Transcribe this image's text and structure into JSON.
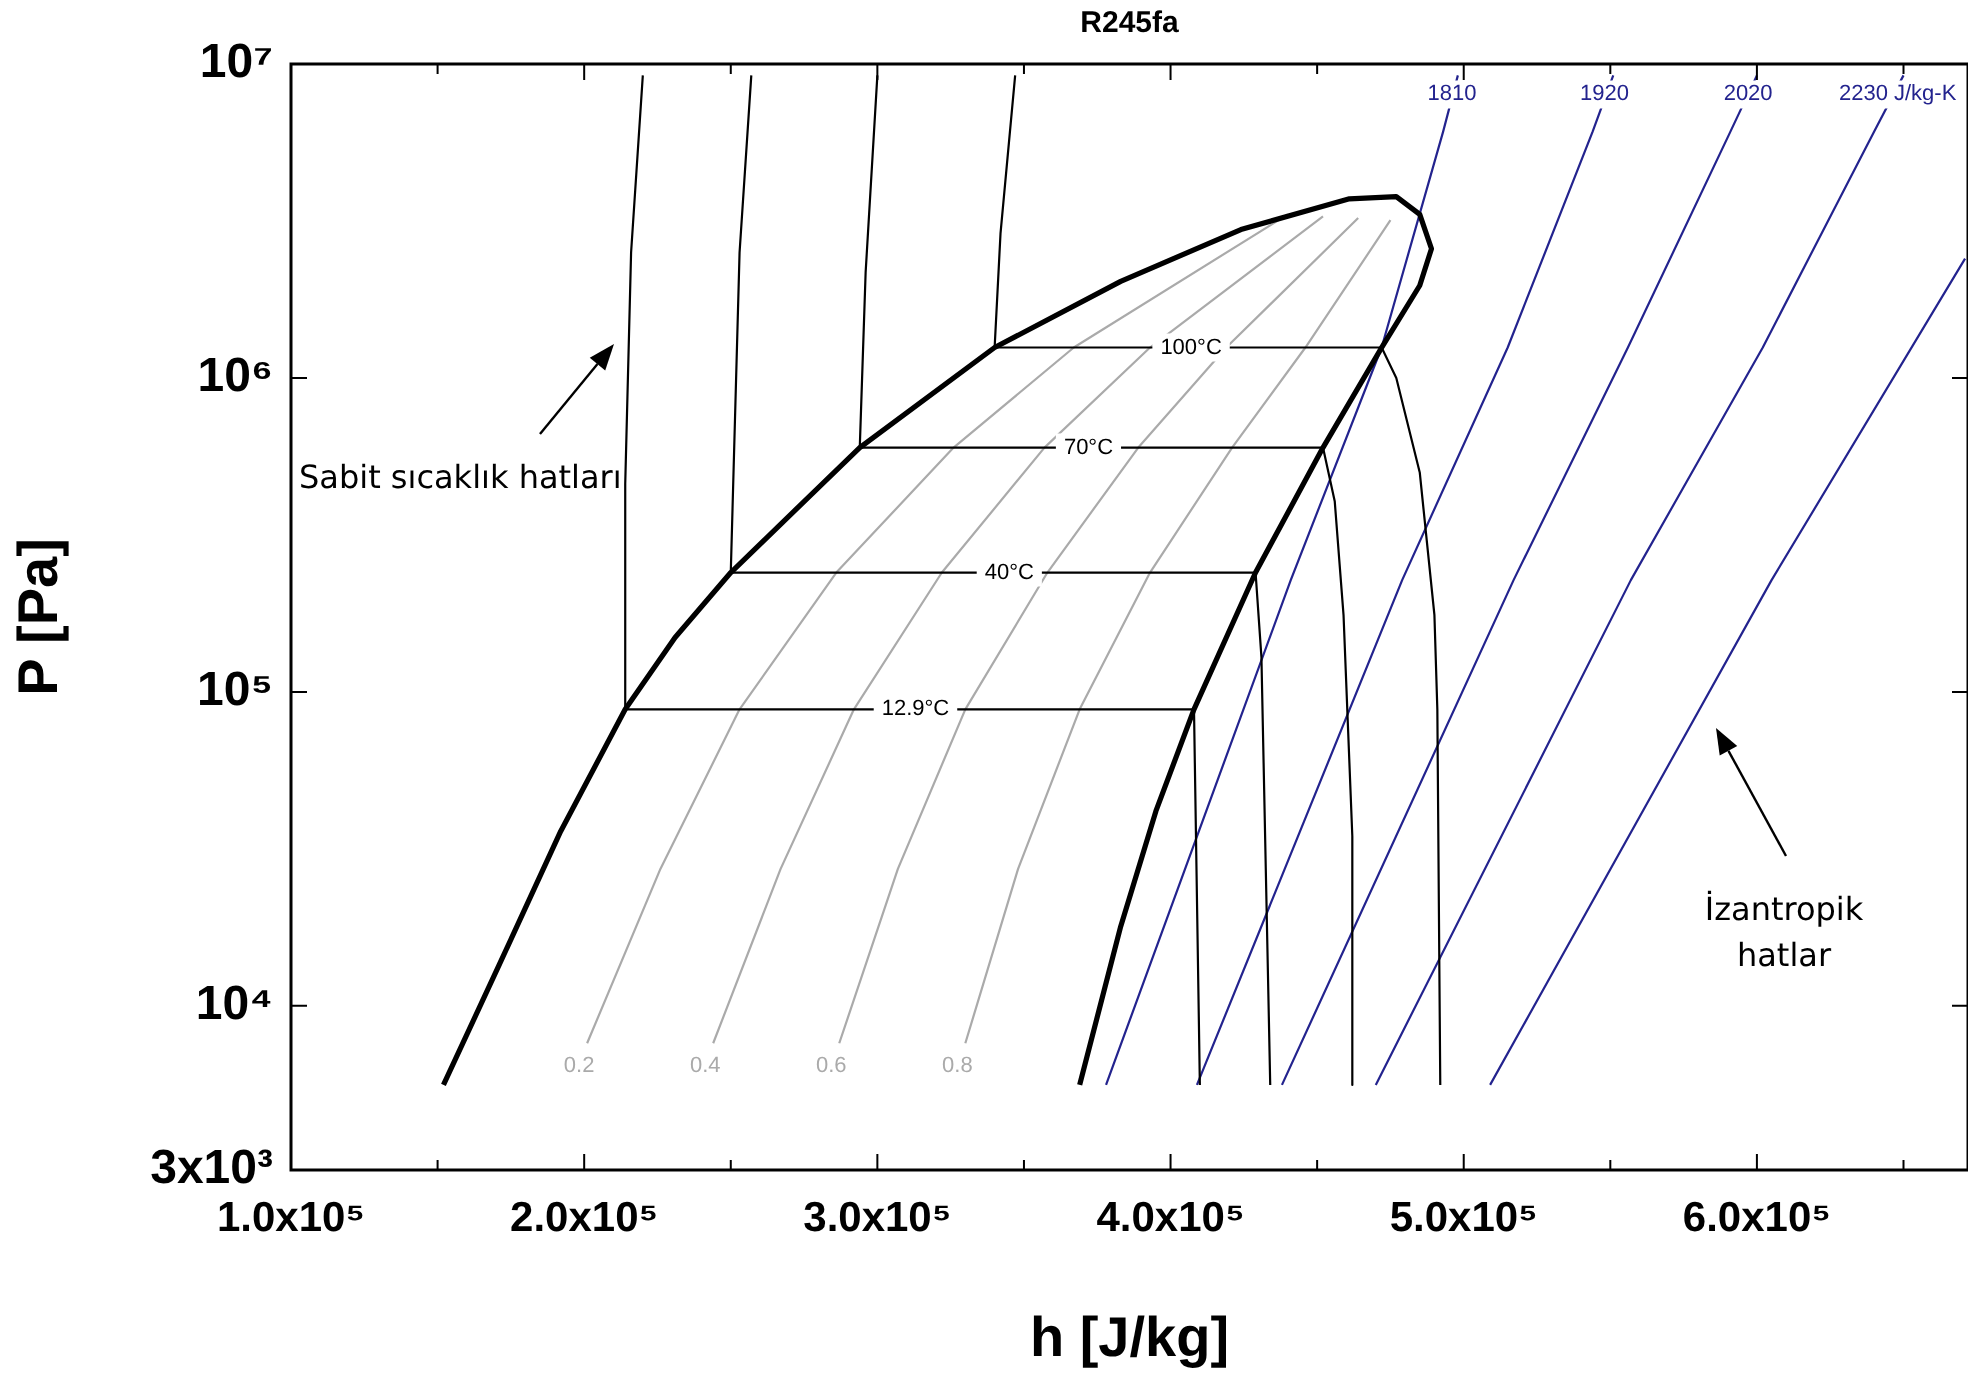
{
  "chart_data": {
    "type": "line",
    "title": "R245fa",
    "xlabel": "h [J/kg]",
    "ylabel": "P [Pa]",
    "xlim": [
      100000,
      672000
    ],
    "ylim": [
      3000,
      10000000
    ],
    "log": "y",
    "grid": false,
    "legend": false,
    "marker": "none",
    "xticks": [
      {
        "value": 100000,
        "label": "1.0x10⁵"
      },
      {
        "value": 150000,
        "label": null
      },
      {
        "value": 200000,
        "label": "2.0x10⁵"
      },
      {
        "value": 250000,
        "label": null
      },
      {
        "value": 300000,
        "label": "3.0x10⁵"
      },
      {
        "value": 350000,
        "label": null
      },
      {
        "value": 400000,
        "label": "4.0x10⁵"
      },
      {
        "value": 450000,
        "label": null
      },
      {
        "value": 500000,
        "label": "5.0x10⁵"
      },
      {
        "value": 550000,
        "label": null
      },
      {
        "value": 600000,
        "label": "6.0x10⁵"
      },
      {
        "value": 650000,
        "label": null
      }
    ],
    "yticks": [
      {
        "value": 3000,
        "label": "3x10³"
      },
      {
        "value": 10000,
        "label": "10⁴"
      },
      {
        "value": 100000,
        "label": "10⁵"
      },
      {
        "value": 1000000,
        "label": "10⁶"
      },
      {
        "value": 10000000,
        "label": "10⁷"
      }
    ],
    "series": [
      {
        "color": "#000000",
        "x": [
          152000,
          171000,
          192000,
          214000,
          231000,
          250000,
          294000,
          340000,
          383000,
          424000,
          461000,
          477000,
          485000,
          489000,
          485000,
          472000,
          452000,
          429000,
          408000,
          395000,
          383000,
          369000
        ],
        "values": [
          5600,
          13500,
          36000,
          88000,
          149000,
          240000,
          600000,
          1250000,
          2030000,
          2970000,
          3720000,
          3780000,
          3320000,
          2580000,
          1970000,
          1250000,
          600000,
          240000,
          88000,
          41700,
          17900,
          5600
        ]
      },
      {
        "color": "#000000",
        "x": [
          220000,
          216000,
          214000,
          214000,
          408000,
          410000
        ],
        "values": [
          9200000,
          2510000,
          460000,
          88000,
          88000,
          5600
        ]
      },
      {
        "color": "#000000",
        "x": [
          257000,
          253000,
          250000,
          429000,
          431000,
          434000
        ],
        "values": [
          9200000,
          2510000,
          240000,
          240000,
          129000,
          5600
        ]
      },
      {
        "color": "#000000",
        "x": [
          300000,
          296000,
          294000,
          452000,
          456000,
          459000,
          462000,
          462000
        ],
        "values": [
          9200000,
          2170000,
          600000,
          600000,
          405000,
          176000,
          34700,
          5600
        ]
      },
      {
        "color": "#000000",
        "x": [
          347000,
          342000,
          340000,
          472000,
          477000,
          485000,
          490000,
          491000,
          492000
        ],
        "values": [
          9200000,
          2880000,
          1250000,
          1250000,
          1000000,
          500000,
          176000,
          88000,
          5600
        ]
      },
      {
        "name": "0.2",
        "color": "#aaaaaa",
        "x": [
          201000,
          226000,
          253000,
          286000,
          326000,
          367000,
          440000
        ],
        "values": [
          7600,
          27300,
          88000,
          240000,
          600000,
          1250000,
          3320000
        ]
      },
      {
        "name": "0.4",
        "color": "#aaaaaa",
        "x": [
          244000,
          267000,
          292000,
          322000,
          357000,
          393000,
          452000
        ],
        "values": [
          7600,
          27300,
          88000,
          240000,
          600000,
          1250000,
          3270000
        ]
      },
      {
        "name": "0.6",
        "color": "#aaaaaa",
        "x": [
          287000,
          307000,
          330000,
          358000,
          389000,
          419000,
          464000
        ],
        "values": [
          7600,
          27300,
          88000,
          240000,
          600000,
          1250000,
          3230000
        ]
      },
      {
        "name": "0.8",
        "color": "#aaaaaa",
        "x": [
          330000,
          348000,
          369000,
          393000,
          421000,
          446000,
          475000
        ],
        "values": [
          7600,
          27300,
          88000,
          240000,
          600000,
          1250000,
          3180000
        ]
      },
      {
        "color": "#23238e",
        "x": [
          378000,
          441000,
          472000,
          493000,
          498000
        ],
        "values": [
          5600,
          227000,
          1250000,
          6100000,
          9200000
        ]
      },
      {
        "color": "#23238e",
        "x": [
          409000,
          479000,
          515000,
          544000,
          551000
        ],
        "values": [
          5600,
          227000,
          1250000,
          6100000,
          9200000
        ]
      },
      {
        "color": "#23238e",
        "x": [
          438000,
          517000,
          556000,
          591000,
          600000
        ],
        "values": [
          5600,
          227000,
          1250000,
          6100000,
          9200000
        ]
      },
      {
        "color": "#23238e",
        "x": [
          470000,
          557000,
          602000,
          640000,
          650000
        ],
        "values": [
          5600,
          227000,
          1250000,
          6100000,
          9200000
        ]
      },
      {
        "color": "#23238e",
        "x": [
          509000,
          605000,
          671000
        ],
        "values": [
          5600,
          227000,
          2400000
        ]
      }
    ],
    "annotations": [
      "Sabit sıcaklık hatları",
      "İzantropik hatlar",
      {
        "text": "100°C",
        "x": 407000,
        "y": 1250000
      },
      {
        "text": "70°C",
        "x": 372000,
        "y": 600000
      },
      {
        "text": "40°C",
        "x": 345000,
        "y": 240000
      },
      {
        "text": "12.9°C",
        "x": 313000,
        "y": 88000
      },
      {
        "text": "1810",
        "x": 496000,
        "y": 8000000
      },
      {
        "text": "1920",
        "x": 548000,
        "y": 8000000
      },
      {
        "text": "2020",
        "x": 597000,
        "y": 8000000
      },
      {
        "text": "2230 J/kg-K",
        "x": 648000,
        "y": 8000000
      }
    ]
  }
}
